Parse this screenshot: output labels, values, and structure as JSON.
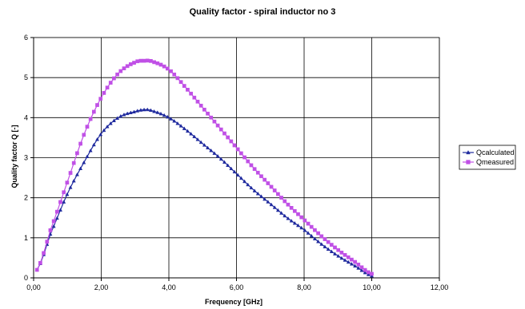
{
  "chart_data": {
    "type": "line",
    "title": "Quality factor - spiral inductor no 3",
    "xlabel": "Frequency [GHz]",
    "ylabel": "Quality factor Q [-]",
    "xlim": [
      0,
      12
    ],
    "ylim": [
      0,
      6
    ],
    "x_ticks": [
      "0,00",
      "2,00",
      "4,00",
      "6,00",
      "8,00",
      "10,00",
      "12,00"
    ],
    "y_ticks": [
      "0",
      "1",
      "2",
      "3",
      "4",
      "5",
      "6"
    ],
    "grid": true,
    "legend_position": "right",
    "series": [
      {
        "name": "Qcalculated",
        "color": "#1f2a9e",
        "marker": "triangle",
        "x": [
          0.1,
          0.5,
          1.0,
          1.5,
          2.0,
          2.5,
          3.0,
          3.3,
          3.5,
          4.0,
          4.5,
          5.0,
          5.5,
          6.0,
          6.5,
          7.0,
          7.5,
          8.0,
          8.5,
          9.0,
          9.5,
          10.0
        ],
        "y": [
          0.2,
          1.1,
          2.1,
          2.9,
          3.6,
          4.0,
          4.15,
          4.2,
          4.17,
          4.0,
          3.7,
          3.35,
          3.0,
          2.6,
          2.2,
          1.85,
          1.5,
          1.2,
          0.85,
          0.55,
          0.3,
          0.05
        ]
      },
      {
        "name": "Qmeasured",
        "color": "#c050e6",
        "marker": "square",
        "x": [
          0.1,
          0.5,
          1.0,
          1.5,
          2.0,
          2.5,
          3.0,
          3.3,
          3.5,
          4.0,
          4.5,
          5.0,
          5.5,
          6.0,
          6.5,
          7.0,
          7.5,
          8.0,
          8.5,
          9.0,
          9.5,
          10.0
        ],
        "y": [
          0.2,
          1.2,
          2.4,
          3.6,
          4.5,
          5.1,
          5.38,
          5.42,
          5.4,
          5.2,
          4.75,
          4.25,
          3.75,
          3.25,
          2.75,
          2.3,
          1.85,
          1.45,
          1.05,
          0.7,
          0.4,
          0.1
        ]
      }
    ]
  }
}
